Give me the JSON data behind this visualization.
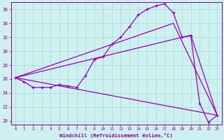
{
  "xlabel": "Windchill (Refroidissement éolien,°C)",
  "background_color": "#cff0f0",
  "grid_color": "#aadddd",
  "line_color": "#9900aa",
  "xlim": [
    -0.5,
    23.5
  ],
  "ylim": [
    19.5,
    37.0
  ],
  "yticks": [
    20,
    22,
    24,
    26,
    28,
    30,
    32,
    34,
    36
  ],
  "xticks": [
    0,
    1,
    2,
    3,
    4,
    5,
    6,
    7,
    8,
    9,
    10,
    11,
    12,
    13,
    14,
    15,
    16,
    17,
    18,
    19,
    20,
    21,
    22,
    23
  ],
  "series0_x": [
    0,
    1,
    2,
    3,
    4,
    5,
    6,
    7,
    8,
    9,
    10,
    11,
    12,
    13,
    14,
    15,
    16,
    17,
    18,
    19,
    20,
    21,
    22,
    23
  ],
  "series0_y": [
    26.2,
    25.6,
    24.8,
    24.8,
    24.8,
    25.2,
    25.0,
    24.8,
    26.5,
    28.8,
    29.2,
    31.0,
    32.0,
    33.5,
    35.2,
    36.0,
    36.5,
    36.8,
    35.5,
    32.0,
    32.2,
    22.5,
    19.8,
    20.8
  ],
  "line1_x": [
    0,
    18,
    23
  ],
  "line1_y": [
    26.2,
    34.0,
    20.8
  ],
  "line2_x": [
    0,
    20,
    23
  ],
  "line2_y": [
    26.2,
    32.3,
    20.8
  ],
  "line3_x": [
    0,
    23
  ],
  "line3_y": [
    26.2,
    20.8
  ]
}
